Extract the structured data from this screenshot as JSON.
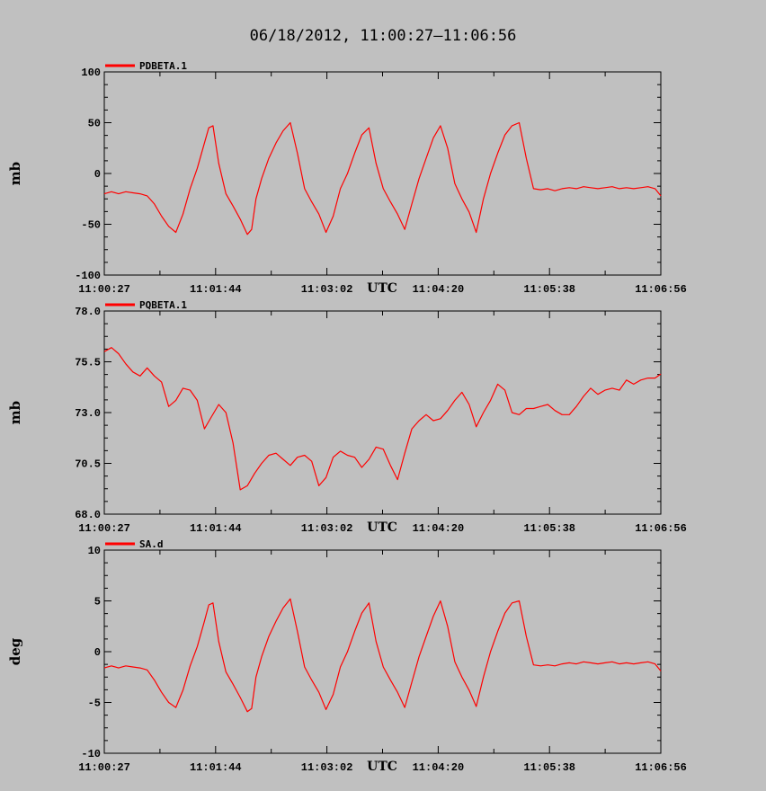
{
  "title": "06/18/2012, 11:00:27–11:06:56",
  "xunit": "UTC",
  "xticks": [
    "11:00:27",
    "11:01:44",
    "11:03:02",
    "11:04:20",
    "11:05:38",
    "11:06:56"
  ],
  "colors": {
    "background": "#c0c0c0",
    "series": "#ff0000",
    "axis": "#000000"
  },
  "chart_data": [
    {
      "type": "line",
      "legend": "PDBETA.1",
      "ylabel": "mb",
      "ylim": [
        -100,
        100
      ],
      "yticks": [
        "100",
        "50",
        "0",
        "-50",
        "-100"
      ],
      "xlim": [
        0,
        389
      ],
      "grid": false,
      "x": [
        0,
        5,
        10,
        15,
        20,
        25,
        30,
        35,
        40,
        45,
        50,
        55,
        60,
        65,
        70,
        73,
        76,
        80,
        85,
        90,
        95,
        100,
        103,
        106,
        110,
        115,
        120,
        125,
        130,
        135,
        140,
        145,
        150,
        155,
        160,
        165,
        170,
        175,
        180,
        185,
        190,
        195,
        200,
        205,
        210,
        215,
        220,
        225,
        230,
        235,
        240,
        245,
        250,
        255,
        260,
        265,
        270,
        275,
        280,
        285,
        290,
        295,
        300,
        305,
        310,
        315,
        320,
        325,
        330,
        335,
        340,
        345,
        350,
        355,
        360,
        365,
        370,
        375,
        380,
        385,
        389
      ],
      "y": [
        -20,
        -18,
        -20,
        -18,
        -19,
        -20,
        -22,
        -30,
        -42,
        -52,
        -58,
        -40,
        -15,
        5,
        30,
        45,
        47,
        10,
        -20,
        -32,
        -45,
        -60,
        -55,
        -25,
        -5,
        15,
        30,
        42,
        50,
        20,
        -15,
        -28,
        -40,
        -58,
        -42,
        -15,
        0,
        20,
        38,
        45,
        10,
        -15,
        -28,
        -40,
        -55,
        -30,
        -5,
        15,
        35,
        47,
        25,
        -10,
        -25,
        -38,
        -58,
        -25,
        0,
        20,
        38,
        47,
        50,
        15,
        -15,
        -16,
        -15,
        -17,
        -15,
        -14,
        -15,
        -13,
        -14,
        -15,
        -14,
        -13,
        -15,
        -14,
        -15,
        -14,
        -13,
        -15,
        -22
      ]
    },
    {
      "type": "line",
      "legend": "PQBETA.1",
      "ylabel": "mb",
      "ylim": [
        68.0,
        78.0
      ],
      "yticks": [
        "78.0",
        "75.5",
        "73.0",
        "70.5",
        "68.0"
      ],
      "xlim": [
        0,
        389
      ],
      "grid": false,
      "x": [
        0,
        5,
        10,
        15,
        20,
        25,
        30,
        35,
        40,
        45,
        50,
        55,
        60,
        65,
        70,
        75,
        80,
        85,
        90,
        95,
        100,
        105,
        110,
        115,
        120,
        125,
        130,
        135,
        140,
        145,
        150,
        155,
        160,
        165,
        170,
        175,
        180,
        185,
        190,
        195,
        200,
        205,
        210,
        215,
        220,
        225,
        230,
        235,
        240,
        245,
        250,
        255,
        260,
        265,
        270,
        275,
        280,
        285,
        290,
        295,
        300,
        305,
        310,
        315,
        320,
        325,
        330,
        335,
        340,
        345,
        350,
        355,
        360,
        365,
        370,
        375,
        380,
        385,
        389
      ],
      "y": [
        76.0,
        76.2,
        75.9,
        75.4,
        75.0,
        74.8,
        75.2,
        74.8,
        74.5,
        73.3,
        73.6,
        74.2,
        74.1,
        73.6,
        72.2,
        72.8,
        73.4,
        73.0,
        71.5,
        69.2,
        69.4,
        70.0,
        70.5,
        70.9,
        71.0,
        70.7,
        70.4,
        70.8,
        70.9,
        70.6,
        69.4,
        69.8,
        70.8,
        71.1,
        70.9,
        70.8,
        70.3,
        70.7,
        71.3,
        71.2,
        70.4,
        69.7,
        71.0,
        72.2,
        72.6,
        72.9,
        72.6,
        72.7,
        73.1,
        73.6,
        74.0,
        73.4,
        72.3,
        73.0,
        73.6,
        74.4,
        74.1,
        73.0,
        72.9,
        73.2,
        73.2,
        73.3,
        73.4,
        73.1,
        72.9,
        72.9,
        73.3,
        73.8,
        74.2,
        73.9,
        74.1,
        74.2,
        74.1,
        74.6,
        74.4,
        74.6,
        74.7,
        74.7,
        74.9
      ]
    },
    {
      "type": "line",
      "legend": "SA.d",
      "ylabel": "deg",
      "ylim": [
        -10,
        10
      ],
      "yticks": [
        "10",
        "5",
        "0",
        "-5",
        "-10"
      ],
      "xlim": [
        0,
        389
      ],
      "grid": false,
      "x": [
        0,
        5,
        10,
        15,
        20,
        25,
        30,
        35,
        40,
        45,
        50,
        55,
        60,
        65,
        70,
        73,
        76,
        80,
        85,
        90,
        95,
        100,
        103,
        106,
        110,
        115,
        120,
        125,
        130,
        135,
        140,
        145,
        150,
        155,
        160,
        165,
        170,
        175,
        180,
        185,
        190,
        195,
        200,
        205,
        210,
        215,
        220,
        225,
        230,
        235,
        240,
        245,
        250,
        255,
        260,
        265,
        270,
        275,
        280,
        285,
        290,
        295,
        300,
        305,
        310,
        315,
        320,
        325,
        330,
        335,
        340,
        345,
        350,
        355,
        360,
        365,
        370,
        375,
        380,
        385,
        389
      ],
      "y": [
        -1.6,
        -1.4,
        -1.6,
        -1.4,
        -1.5,
        -1.6,
        -1.8,
        -2.8,
        -4.0,
        -5.0,
        -5.5,
        -3.8,
        -1.4,
        0.5,
        3.0,
        4.6,
        4.8,
        1.0,
        -2.0,
        -3.2,
        -4.5,
        -5.9,
        -5.6,
        -2.5,
        -0.5,
        1.5,
        3.0,
        4.3,
        5.2,
        2.0,
        -1.5,
        -2.8,
        -4.0,
        -5.7,
        -4.2,
        -1.5,
        0.0,
        2.0,
        3.8,
        4.8,
        1.0,
        -1.5,
        -2.8,
        -4.0,
        -5.5,
        -3.0,
        -0.5,
        1.5,
        3.5,
        5.0,
        2.5,
        -1.0,
        -2.5,
        -3.8,
        -5.4,
        -2.5,
        0.0,
        2.0,
        3.8,
        4.8,
        5.0,
        1.5,
        -1.3,
        -1.4,
        -1.3,
        -1.4,
        -1.2,
        -1.1,
        -1.2,
        -1.0,
        -1.1,
        -1.2,
        -1.1,
        -1.0,
        -1.2,
        -1.1,
        -1.2,
        -1.1,
        -1.0,
        -1.2,
        -1.9
      ]
    }
  ]
}
